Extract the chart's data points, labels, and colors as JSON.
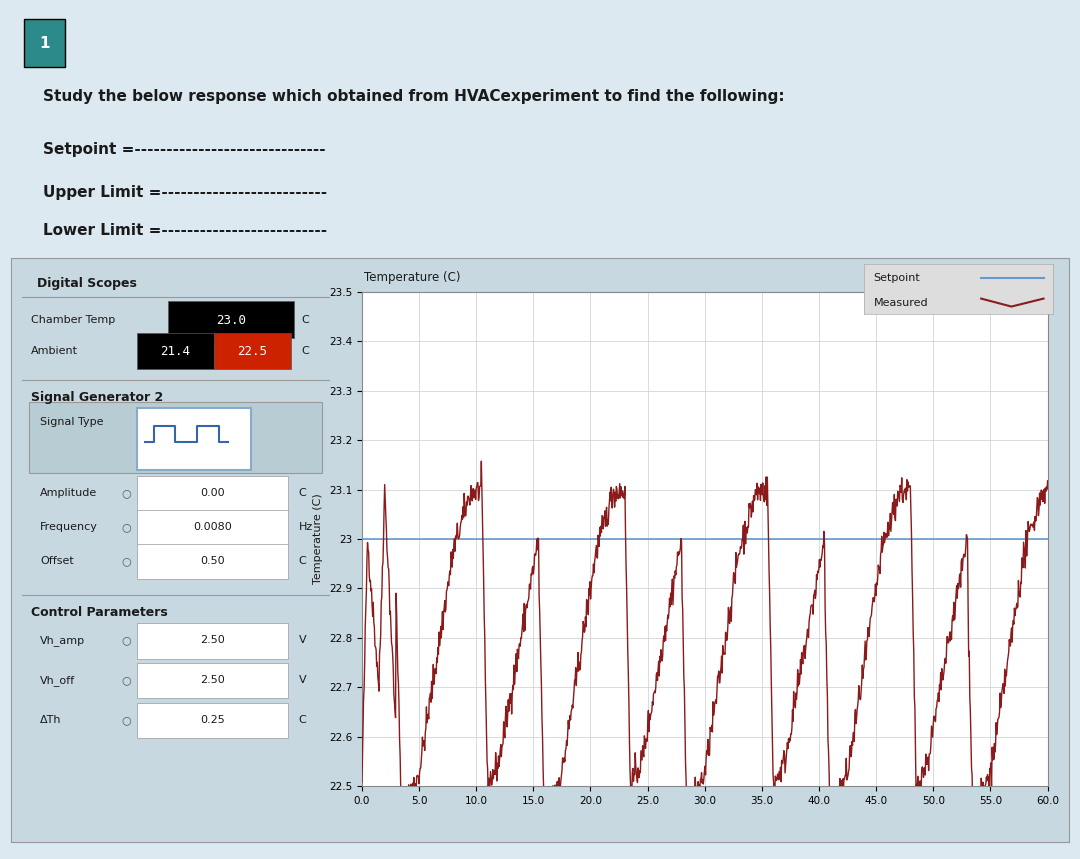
{
  "title_number": "1",
  "title_number_bg": "#2d8a8a",
  "question_text": "Study the below response which obtained from HVACexperiment to find the following:",
  "setpoint_label": "Setpoint =",
  "upper_limit_label": "Upper Limit =",
  "lower_limit_label": "Lower Limit =",
  "dashes_setpoint": "------------------------------",
  "dashes_upper": "--------------------------",
  "dashes_lower": "--------------------------",
  "page_bg": "#dce9f0",
  "panel_bg": "#c8d8e0",
  "plot_bg": "#ffffff",
  "panel_header_text": "Digital Scopes",
  "chamber_temp_label": "Chamber Temp",
  "chamber_temp_value": "23.0",
  "chamber_temp_unit": "C",
  "ambient_label": "Ambient",
  "ambient_value1": "21.4",
  "ambient_value2": "22.5",
  "ambient_unit": "C",
  "signal_gen_label": "Signal Generator 2",
  "signal_type_label": "Signal Type",
  "amplitude_label": "Amplitude",
  "amplitude_value": "0.00",
  "amplitude_unit": "C",
  "frequency_label": "Frequency",
  "frequency_value": "0.0080",
  "frequency_unit": "Hz",
  "offset_label": "Offset",
  "offset_value": "0.50",
  "offset_unit": "C",
  "control_params_label": "Control Parameters",
  "vh_amp_label": "Vh_amp",
  "vh_amp_value": "2.50",
  "vh_amp_unit": "V",
  "vh_off_label": "Vh_off",
  "vh_off_value": "2.50",
  "vh_off_unit": "V",
  "ath_label": "ΔTh",
  "ath_value": "0.25",
  "ath_unit": "C",
  "plot_ylabel": "Temperature (C)",
  "plot_xlabel_ticks": [
    0.0,
    5.0,
    10.0,
    15.0,
    20.0,
    25.0,
    30.0,
    35.0,
    40.0,
    45.0,
    50.0,
    55.0,
    60.0
  ],
  "plot_yticks": [
    22.5,
    22.6,
    22.7,
    22.8,
    22.9,
    23.0,
    23.1,
    23.2,
    23.3,
    23.4,
    23.5
  ],
  "setpoint_value": 23.0,
  "setpoint_color": "#6699cc",
  "measured_color": "#8b1a1a",
  "legend_setpoint": "Setpoint",
  "legend_measured": "Measured",
  "ambient_box2_color": "#cc2200"
}
